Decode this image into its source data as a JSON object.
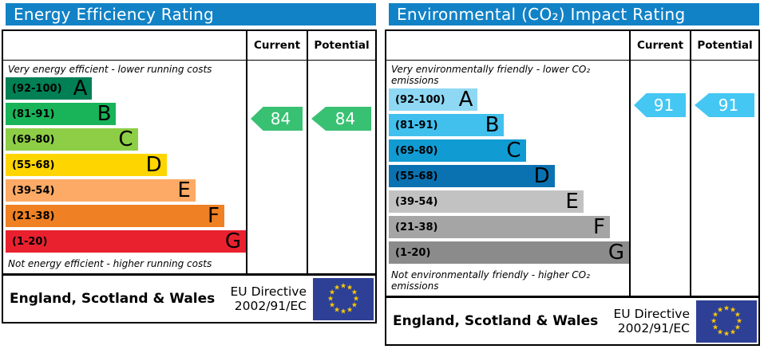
{
  "chart_data": [
    {
      "type": "bar",
      "title": "Energy Efficiency Rating",
      "subtitle_top": "Very energy efficient - lower running costs",
      "subtitle_bottom": "Not energy efficient - higher running costs",
      "categories": [
        "A (92-100)",
        "B (81-91)",
        "C (69-80)",
        "D (55-68)",
        "E (39-54)",
        "F (21-38)",
        "G (1-20)"
      ],
      "band_widths_pct": [
        36,
        46,
        55,
        67,
        79,
        91,
        100
      ],
      "current": 84,
      "potential": 84,
      "current_band": "B",
      "potential_band": "B",
      "legend_position": "top-right columns Current / Potential",
      "footer": "England, Scotland & Wales — EU Directive 2002/91/EC"
    },
    {
      "type": "bar",
      "title": "Environmental (CO₂) Impact Rating",
      "subtitle_top": "Very environmentally friendly - lower CO₂ emissions",
      "subtitle_bottom": "Not environmentally friendly - higher CO₂ emissions",
      "categories": [
        "A (92-100)",
        "B (81-91)",
        "C (69-80)",
        "D (55-68)",
        "E (39-54)",
        "F (21-38)",
        "G (1-20)"
      ],
      "band_widths_pct": [
        37,
        48,
        57,
        69,
        81,
        92,
        100
      ],
      "current": 91,
      "potential": 91,
      "current_band": "B",
      "potential_band": "B",
      "legend_position": "top-right columns Current / Potential",
      "footer": "England, Scotland & Wales — EU Directive 2002/91/EC"
    }
  ],
  "panels": [
    {
      "title": "Energy Efficiency Rating",
      "title_bg": "#1282c6",
      "columns": {
        "current": "Current",
        "potential": "Potential"
      },
      "top_label": "Very energy efficient - lower running costs",
      "bottom_label": "Not energy efficient - higher running costs",
      "bands": [
        {
          "letter": "A",
          "range": "(92-100)",
          "color": "#008054",
          "width_pct": 36
        },
        {
          "letter": "B",
          "range": "(81-91)",
          "color": "#19b459",
          "width_pct": 46
        },
        {
          "letter": "C",
          "range": "(69-80)",
          "color": "#8dce46",
          "width_pct": 55
        },
        {
          "letter": "D",
          "range": "(55-68)",
          "color": "#ffd500",
          "width_pct": 67
        },
        {
          "letter": "E",
          "range": "(39-54)",
          "color": "#fcaa65",
          "width_pct": 79
        },
        {
          "letter": "F",
          "range": "(21-38)",
          "color": "#ef8023",
          "width_pct": 91
        },
        {
          "letter": "G",
          "range": "(1-20)",
          "color": "#e9212e",
          "width_pct": 100
        }
      ],
      "current": {
        "value": "84",
        "color": "#38c172"
      },
      "potential": {
        "value": "84",
        "color": "#38c172"
      },
      "footer": {
        "region": "England, Scotland & Wales",
        "directive_line1": "EU Directive",
        "directive_line2": "2002/91/EC",
        "flag_color": "#2e4095",
        "star_color": "#ffcc00"
      }
    },
    {
      "title": "Environmental (CO₂) Impact Rating",
      "title_bg": "#1282c6",
      "columns": {
        "current": "Current",
        "potential": "Potential"
      },
      "top_label": "Very environmentally friendly - lower CO₂ emissions",
      "bottom_label": "Not environmentally friendly - higher CO₂ emissions",
      "bands": [
        {
          "letter": "A",
          "range": "(92-100)",
          "color": "#8ed8f4",
          "width_pct": 37
        },
        {
          "letter": "B",
          "range": "(81-91)",
          "color": "#41c0ee",
          "width_pct": 48
        },
        {
          "letter": "C",
          "range": "(69-80)",
          "color": "#119bd3",
          "width_pct": 57
        },
        {
          "letter": "D",
          "range": "(55-68)",
          "color": "#0b72b1",
          "width_pct": 69
        },
        {
          "letter": "E",
          "range": "(39-54)",
          "color": "#c2c2c2",
          "width_pct": 81
        },
        {
          "letter": "F",
          "range": "(21-38)",
          "color": "#a5a5a5",
          "width_pct": 92
        },
        {
          "letter": "G",
          "range": "(1-20)",
          "color": "#8b8b8b",
          "width_pct": 100
        }
      ],
      "current": {
        "value": "91",
        "color": "#44c7f3"
      },
      "potential": {
        "value": "91",
        "color": "#44c7f3"
      },
      "footer": {
        "region": "England, Scotland & Wales",
        "directive_line1": "EU Directive",
        "directive_line2": "2002/91/EC",
        "flag_color": "#2e4095",
        "star_color": "#ffcc00"
      }
    }
  ]
}
